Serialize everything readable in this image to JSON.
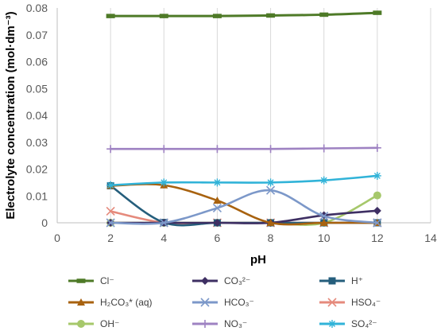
{
  "chart_data": {
    "type": "line",
    "xlabel": "pH",
    "ylabel": "Electrolyte concentration (mol·dm⁻³)",
    "xlim": [
      0,
      14
    ],
    "ylim": [
      0,
      0.08
    ],
    "x_ticks": [
      "0",
      "2",
      "4",
      "6",
      "8",
      "10",
      "12",
      "14"
    ],
    "y_ticks": [
      "0",
      "0.01",
      "0.02",
      "0.03",
      "0.04",
      "0.05",
      "0.06",
      "0.07",
      "0.08"
    ],
    "grid": "vertical",
    "legend": "bottom",
    "x": [
      2,
      4,
      6,
      8,
      10,
      12
    ],
    "series": [
      {
        "name": "Cl⁻",
        "marker": "rect",
        "color": "#4e7a27",
        "values": [
          0.077,
          0.077,
          0.077,
          0.0772,
          0.0775,
          0.0782
        ]
      },
      {
        "name": "CO₃²⁻",
        "marker": "diamond",
        "color": "#3e2f63",
        "values": [
          0.0,
          0.0,
          0.0,
          0.0,
          0.0028,
          0.0045
        ]
      },
      {
        "name": "H⁺",
        "marker": "square",
        "color": "#255e7c",
        "values": [
          0.0138,
          0.0001,
          0.0,
          0.0,
          0.0,
          0.0
        ]
      },
      {
        "name": "H₂CO₃* (aq)",
        "marker": "triangle",
        "color": "#a8620f",
        "values": [
          0.0138,
          0.014,
          0.0083,
          0.0,
          0.0,
          0.0
        ]
      },
      {
        "name": "HCO₃⁻",
        "marker": "x",
        "color": "#7c98c9",
        "values": [
          0.0,
          0.0,
          0.0055,
          0.0121,
          0.0025,
          0.0
        ]
      },
      {
        "name": "HSO₄⁻",
        "marker": "x",
        "color": "#e58a7c",
        "values": [
          0.0043,
          0.0,
          0.0,
          0.0,
          0.0,
          0.0
        ]
      },
      {
        "name": "OH⁻",
        "marker": "circle",
        "color": "#a6c86b",
        "values": [
          0.0,
          0.0,
          0.0,
          0.0,
          0.0,
          0.0102
        ]
      },
      {
        "name": "NO₃⁻",
        "marker": "plus",
        "color": "#9e82c2",
        "values": [
          0.0275,
          0.0275,
          0.0275,
          0.0275,
          0.0277,
          0.0279
        ]
      },
      {
        "name": "SO₄²⁻",
        "marker": "star",
        "color": "#31b3d8",
        "values": [
          0.014,
          0.015,
          0.015,
          0.015,
          0.0158,
          0.0175
        ]
      }
    ]
  }
}
